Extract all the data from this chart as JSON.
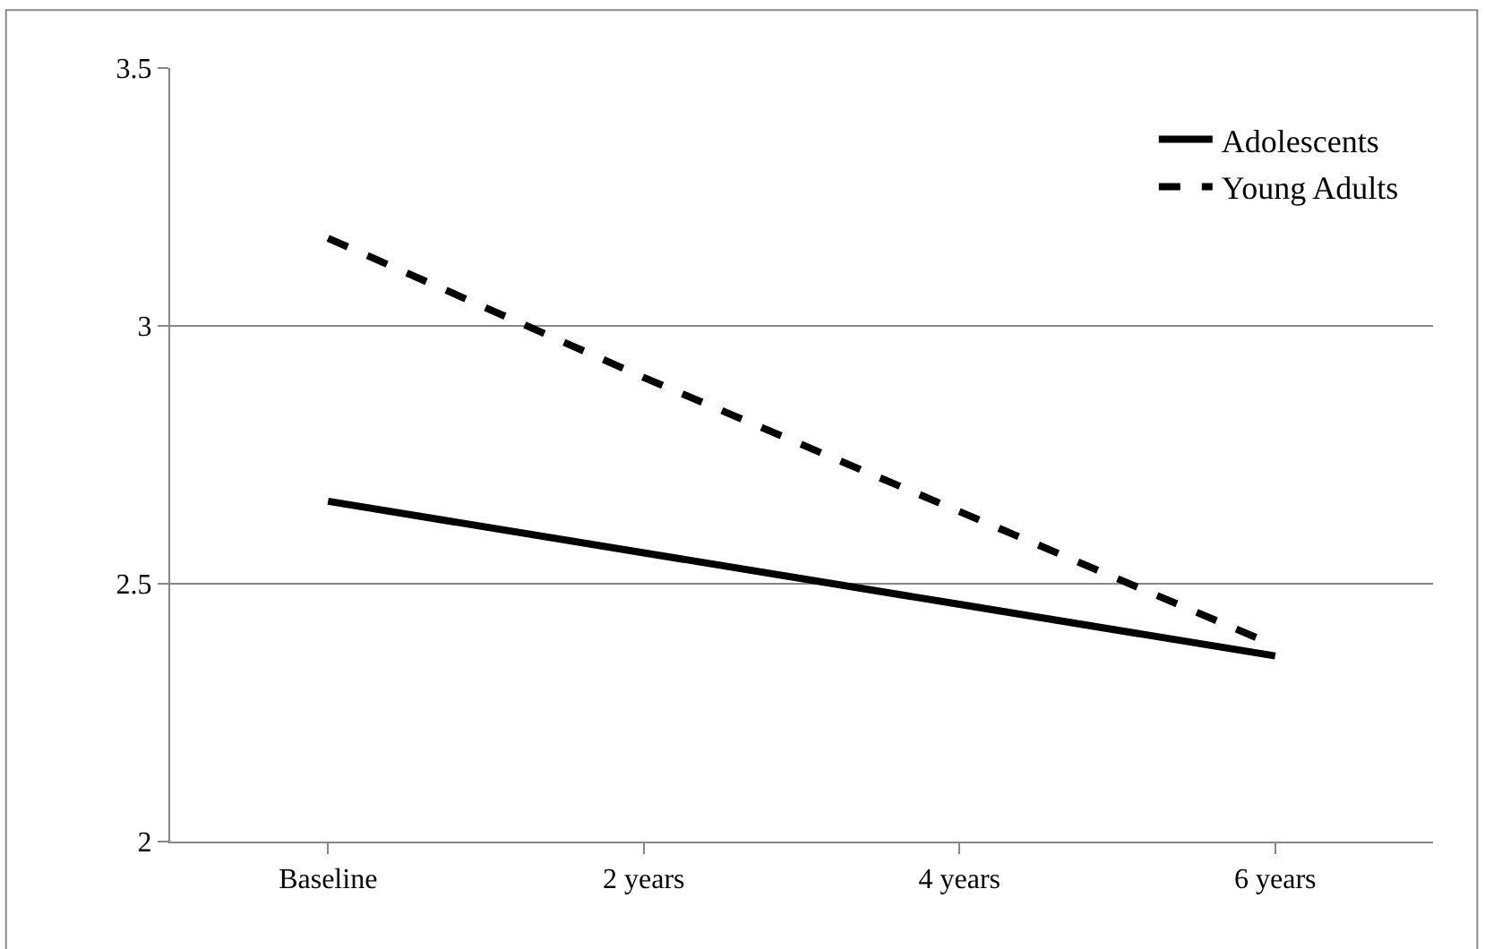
{
  "chart_data": {
    "type": "line",
    "categories": [
      "Baseline",
      "2 years",
      "4 years",
      "6 years"
    ],
    "series": [
      {
        "name": "Adolescents",
        "color": "#000000",
        "values": [
          2.66,
          2.56,
          2.46,
          2.36
        ],
        "line_style": "solid"
      },
      {
        "name": "Young Adults",
        "color": "#000000",
        "values": [
          3.17,
          2.9,
          2.64,
          2.38
        ],
        "line_style": "dashed"
      }
    ],
    "ylim": [
      2,
      3.5
    ],
    "yticks": [
      2,
      2.5,
      3,
      3.5
    ],
    "grid": "y",
    "legend": "top right",
    "marker": "none"
  }
}
